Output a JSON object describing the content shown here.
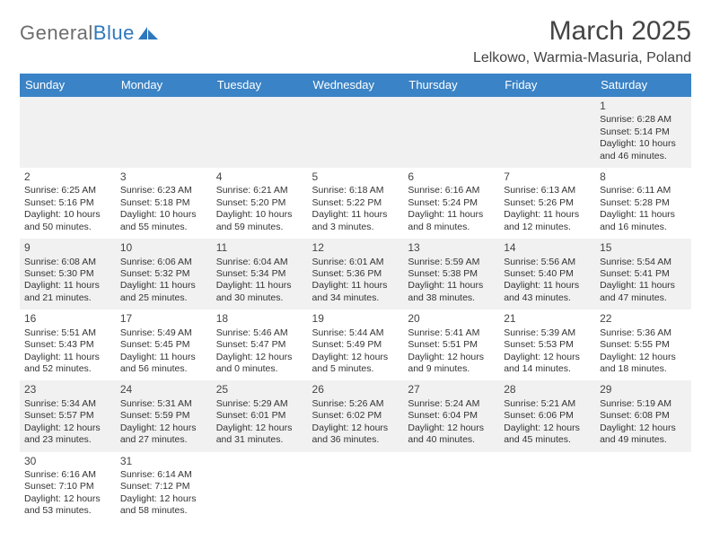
{
  "brand": {
    "general": "General",
    "blue": "Blue"
  },
  "title": "March 2025",
  "location": "Lelkowo, Warmia-Masuria, Poland",
  "colors": {
    "header_bg": "#3a83c6",
    "alt_row": "#f1f1f1",
    "text": "#333333",
    "brand_blue": "#2f78bd",
    "brand_gray": "#6d6d6d"
  },
  "weekdays": [
    "Sunday",
    "Monday",
    "Tuesday",
    "Wednesday",
    "Thursday",
    "Friday",
    "Saturday"
  ],
  "weeks": [
    [
      null,
      null,
      null,
      null,
      null,
      null,
      {
        "n": "1",
        "sr": "6:28 AM",
        "ss": "5:14 PM",
        "dl": "10 hours and 46 minutes."
      }
    ],
    [
      {
        "n": "2",
        "sr": "6:25 AM",
        "ss": "5:16 PM",
        "dl": "10 hours and 50 minutes."
      },
      {
        "n": "3",
        "sr": "6:23 AM",
        "ss": "5:18 PM",
        "dl": "10 hours and 55 minutes."
      },
      {
        "n": "4",
        "sr": "6:21 AM",
        "ss": "5:20 PM",
        "dl": "10 hours and 59 minutes."
      },
      {
        "n": "5",
        "sr": "6:18 AM",
        "ss": "5:22 PM",
        "dl": "11 hours and 3 minutes."
      },
      {
        "n": "6",
        "sr": "6:16 AM",
        "ss": "5:24 PM",
        "dl": "11 hours and 8 minutes."
      },
      {
        "n": "7",
        "sr": "6:13 AM",
        "ss": "5:26 PM",
        "dl": "11 hours and 12 minutes."
      },
      {
        "n": "8",
        "sr": "6:11 AM",
        "ss": "5:28 PM",
        "dl": "11 hours and 16 minutes."
      }
    ],
    [
      {
        "n": "9",
        "sr": "6:08 AM",
        "ss": "5:30 PM",
        "dl": "11 hours and 21 minutes."
      },
      {
        "n": "10",
        "sr": "6:06 AM",
        "ss": "5:32 PM",
        "dl": "11 hours and 25 minutes."
      },
      {
        "n": "11",
        "sr": "6:04 AM",
        "ss": "5:34 PM",
        "dl": "11 hours and 30 minutes."
      },
      {
        "n": "12",
        "sr": "6:01 AM",
        "ss": "5:36 PM",
        "dl": "11 hours and 34 minutes."
      },
      {
        "n": "13",
        "sr": "5:59 AM",
        "ss": "5:38 PM",
        "dl": "11 hours and 38 minutes."
      },
      {
        "n": "14",
        "sr": "5:56 AM",
        "ss": "5:40 PM",
        "dl": "11 hours and 43 minutes."
      },
      {
        "n": "15",
        "sr": "5:54 AM",
        "ss": "5:41 PM",
        "dl": "11 hours and 47 minutes."
      }
    ],
    [
      {
        "n": "16",
        "sr": "5:51 AM",
        "ss": "5:43 PM",
        "dl": "11 hours and 52 minutes."
      },
      {
        "n": "17",
        "sr": "5:49 AM",
        "ss": "5:45 PM",
        "dl": "11 hours and 56 minutes."
      },
      {
        "n": "18",
        "sr": "5:46 AM",
        "ss": "5:47 PM",
        "dl": "12 hours and 0 minutes."
      },
      {
        "n": "19",
        "sr": "5:44 AM",
        "ss": "5:49 PM",
        "dl": "12 hours and 5 minutes."
      },
      {
        "n": "20",
        "sr": "5:41 AM",
        "ss": "5:51 PM",
        "dl": "12 hours and 9 minutes."
      },
      {
        "n": "21",
        "sr": "5:39 AM",
        "ss": "5:53 PM",
        "dl": "12 hours and 14 minutes."
      },
      {
        "n": "22",
        "sr": "5:36 AM",
        "ss": "5:55 PM",
        "dl": "12 hours and 18 minutes."
      }
    ],
    [
      {
        "n": "23",
        "sr": "5:34 AM",
        "ss": "5:57 PM",
        "dl": "12 hours and 23 minutes."
      },
      {
        "n": "24",
        "sr": "5:31 AM",
        "ss": "5:59 PM",
        "dl": "12 hours and 27 minutes."
      },
      {
        "n": "25",
        "sr": "5:29 AM",
        "ss": "6:01 PM",
        "dl": "12 hours and 31 minutes."
      },
      {
        "n": "26",
        "sr": "5:26 AM",
        "ss": "6:02 PM",
        "dl": "12 hours and 36 minutes."
      },
      {
        "n": "27",
        "sr": "5:24 AM",
        "ss": "6:04 PM",
        "dl": "12 hours and 40 minutes."
      },
      {
        "n": "28",
        "sr": "5:21 AM",
        "ss": "6:06 PM",
        "dl": "12 hours and 45 minutes."
      },
      {
        "n": "29",
        "sr": "5:19 AM",
        "ss": "6:08 PM",
        "dl": "12 hours and 49 minutes."
      }
    ],
    [
      {
        "n": "30",
        "sr": "6:16 AM",
        "ss": "7:10 PM",
        "dl": "12 hours and 53 minutes."
      },
      {
        "n": "31",
        "sr": "6:14 AM",
        "ss": "7:12 PM",
        "dl": "12 hours and 58 minutes."
      },
      null,
      null,
      null,
      null,
      null
    ]
  ],
  "labels": {
    "sunrise": "Sunrise: ",
    "sunset": "Sunset: ",
    "daylight": "Daylight: "
  }
}
